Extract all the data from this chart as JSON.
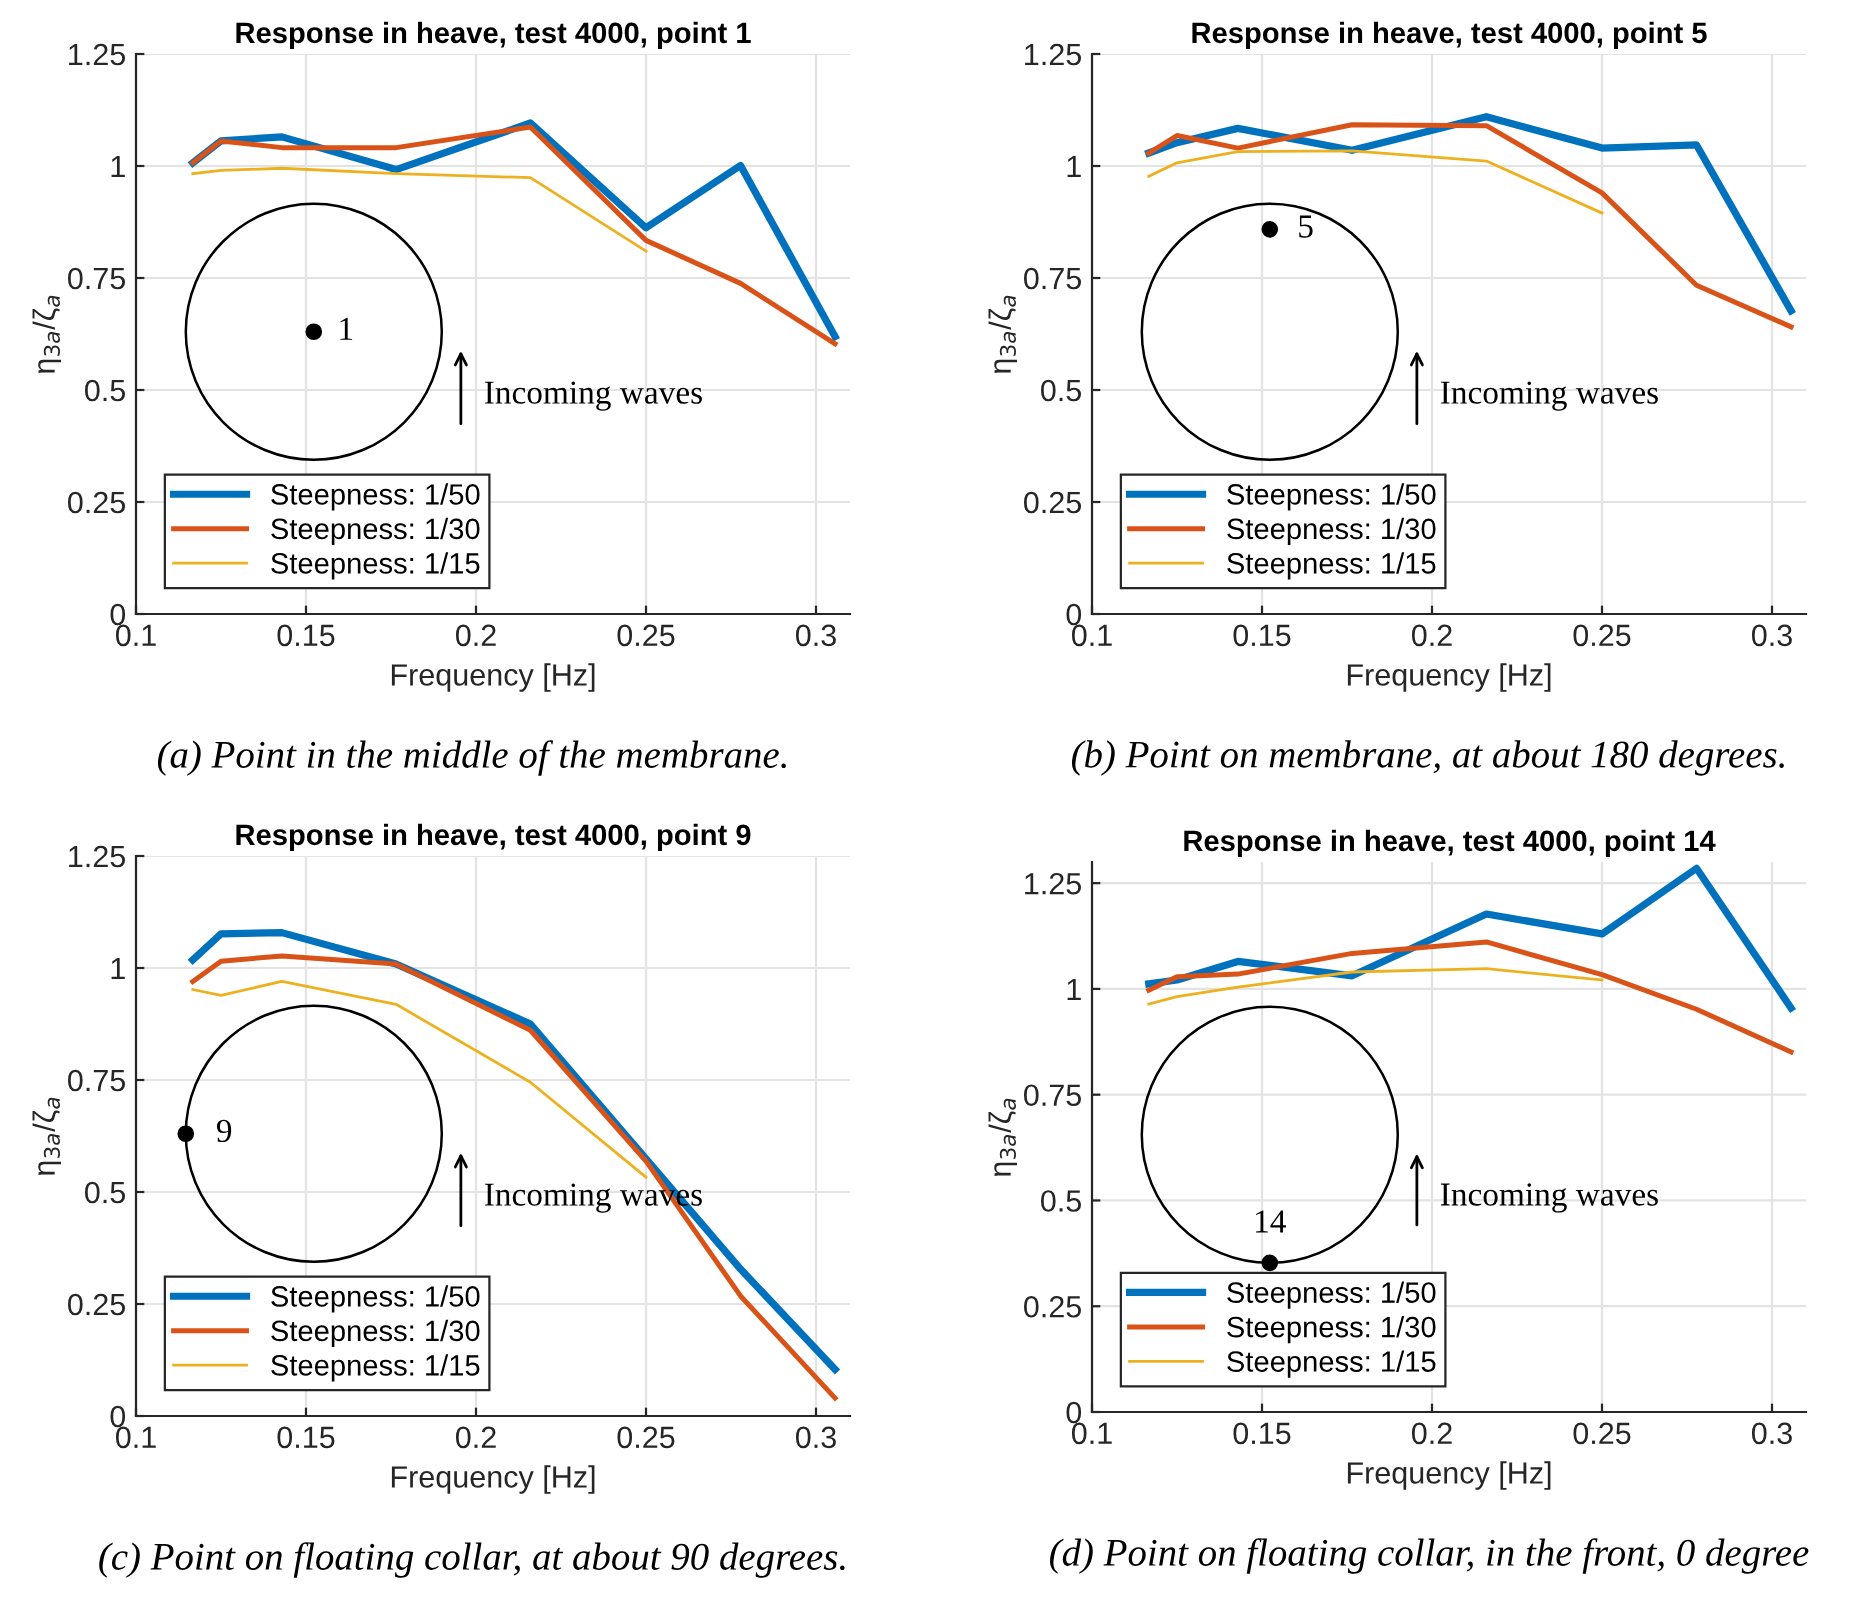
{
  "chart_data": [
    {
      "type": "line",
      "title": "Response in heave, test 4000, point 1",
      "xlabel": "Frequency [Hz]",
      "ylabel": "η$_{3a}$/ζ$_{a}$",
      "x": [
        0.1167,
        0.125,
        0.1429,
        0.1765,
        0.216,
        0.25,
        0.2778,
        0.3056
      ],
      "series": [
        {
          "name": "Steepness: 1/50",
          "color": "#0072bd",
          "values": [
            1.007,
            1.056,
            1.065,
            0.992,
            1.096,
            0.862,
            1.001,
            0.619
          ]
        },
        {
          "name": "Steepness: 1/30",
          "color": "#d95319",
          "values": [
            1.007,
            1.056,
            1.041,
            1.041,
            1.087,
            0.834,
            0.738,
            0.603
          ]
        },
        {
          "name": "Steepness: 1/15",
          "color": "#edb120",
          "values": [
            0.983,
            0.99,
            0.995,
            0.983,
            0.974,
            0.81,
            null,
            null
          ]
        }
      ],
      "xlim": [
        0.1,
        0.31
      ],
      "xticks": [
        0.1,
        0.15,
        0.2,
        0.25,
        0.3
      ],
      "ylim": [
        0,
        1.25
      ],
      "yticks": [
        0,
        0.25,
        0.5,
        0.75,
        1,
        1.25
      ],
      "grid": true,
      "legend": "bottom left",
      "annotations": [
        "1",
        "Incoming waves",
        "(a) Point in the middle of the membrane."
      ]
    },
    {
      "type": "line",
      "title": "Response in heave, test 4000, point 5",
      "xlabel": "Frequency [Hz]",
      "ylabel": "η$_{3a}$/ζ$_{a}$",
      "x": [
        0.1167,
        0.125,
        0.1429,
        0.1765,
        0.216,
        0.25,
        0.2778,
        0.3056
      ],
      "series": [
        {
          "name": "Steepness: 1/50",
          "color": "#0072bd",
          "values": [
            1.029,
            1.052,
            1.084,
            1.035,
            1.11,
            1.04,
            1.047,
            0.677
          ]
        },
        {
          "name": "Steepness: 1/30",
          "color": "#d95319",
          "values": [
            1.029,
            1.068,
            1.04,
            1.092,
            1.09,
            0.94,
            0.734,
            0.641
          ]
        },
        {
          "name": "Steepness: 1/15",
          "color": "#edb120",
          "values": [
            0.977,
            1.007,
            1.032,
            1.034,
            1.011,
            0.895,
            null,
            null
          ]
        }
      ],
      "xlim": [
        0.1,
        0.31
      ],
      "xticks": [
        0.1,
        0.15,
        0.2,
        0.25,
        0.3
      ],
      "ylim": [
        0,
        1.25
      ],
      "yticks": [
        0,
        0.25,
        0.5,
        0.75,
        1,
        1.25
      ],
      "grid": true,
      "legend": "bottom left",
      "annotations": [
        "5",
        "Incoming waves",
        "(b) Point on membrane, at about 180 degrees."
      ]
    },
    {
      "type": "line",
      "title": "Response in heave, test 4000, point 9",
      "xlabel": "Frequency [Hz]",
      "ylabel": "η$_{3a}$/ζ$_{a}$",
      "x": [
        0.1167,
        0.125,
        0.1429,
        0.1765,
        0.216,
        0.25,
        0.2778,
        0.3056
      ],
      "series": [
        {
          "name": "Steepness: 1/50",
          "color": "#0072bd",
          "values": [
            1.018,
            1.076,
            1.079,
            1.009,
            0.875,
            0.574,
            0.328,
            0.104
          ]
        },
        {
          "name": "Steepness: 1/30",
          "color": "#d95319",
          "values": [
            0.97,
            1.015,
            1.027,
            1.009,
            0.861,
            0.569,
            0.268,
            0.04
          ]
        },
        {
          "name": "Steepness: 1/15",
          "color": "#edb120",
          "values": [
            0.952,
            0.939,
            0.97,
            0.919,
            0.745,
            0.533,
            null,
            null
          ]
        }
      ],
      "xlim": [
        0.1,
        0.31
      ],
      "xticks": [
        0.1,
        0.15,
        0.2,
        0.25,
        0.3
      ],
      "ylim": [
        0,
        1.25
      ],
      "yticks": [
        0,
        0.25,
        0.5,
        0.75,
        1,
        1.25
      ],
      "grid": true,
      "legend": "bottom left",
      "annotations": [
        "9",
        "Incoming waves",
        "(c) Point on floating collar, at about 90 degrees."
      ]
    },
    {
      "type": "line",
      "title": "Response in heave, test 4000, point 14",
      "xlabel": "Frequency [Hz]",
      "ylabel": "η$_{3a}$/ζ$_{a}$",
      "x": [
        0.1167,
        0.125,
        0.1429,
        0.1765,
        0.216,
        0.25,
        0.2778,
        0.3056
      ],
      "series": [
        {
          "name": "Steepness: 1/50",
          "color": "#0072bd",
          "values": [
            1.012,
            1.021,
            1.065,
            1.031,
            1.177,
            1.13,
            1.285,
            0.955
          ]
        },
        {
          "name": "Steepness: 1/30",
          "color": "#d95319",
          "values": [
            0.997,
            1.029,
            1.035,
            1.084,
            1.111,
            1.034,
            0.952,
            0.851
          ]
        },
        {
          "name": "Steepness: 1/15",
          "color": "#edb120",
          "values": [
            0.964,
            0.982,
            1.004,
            1.04,
            1.048,
            1.021,
            null,
            null
          ]
        }
      ],
      "xlim": [
        0.1,
        0.31
      ],
      "xticks": [
        0.1,
        0.15,
        0.2,
        0.25,
        0.3
      ],
      "ylim": [
        0,
        1.3
      ],
      "yticks": [
        0,
        0.25,
        0.5,
        0.75,
        1,
        1.25
      ],
      "grid": true,
      "legend": "bottom left",
      "annotations": [
        "14",
        "Incoming waves",
        "(d) Point on floating collar, in the front, 0 degree"
      ]
    }
  ]
}
